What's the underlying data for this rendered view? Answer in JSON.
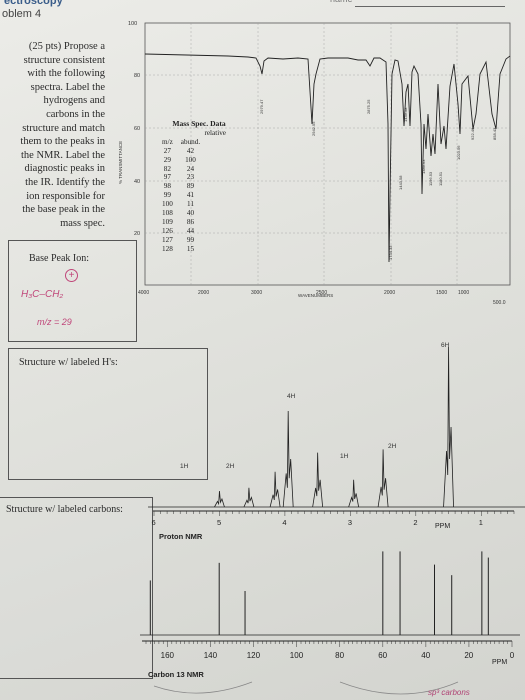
{
  "header": {
    "title_fragment": "ectroscopy",
    "problem_fragment": "oblem 4",
    "name_fragment": "name"
  },
  "problem": {
    "lines": [
      "(25 pts) Propose a",
      "structure consistent",
      "with the following",
      "spectra. Label the",
      "hydrogens and",
      "carbons in the",
      "structure and match",
      "them to the peaks in",
      "the NMR. Label the",
      "diagnostic peaks in",
      "the IR. Identify the",
      "ion responsible for",
      "the base peak in the",
      "mass spec."
    ]
  },
  "base_peak": {
    "label": "Base Peak Ion:",
    "hand_ion": "H₃C–CH₂",
    "hand_charge": "+",
    "hand_mz": "m/z = 29"
  },
  "boxes": {
    "structure_h": "Structure w/ labeled H's:",
    "structure_c": "Structure w/ labeled carbons:"
  },
  "ir": {
    "ylabel": "% TRANSMITTANCE",
    "xlabel": "WAVENUMBERS",
    "y_ticks": [
      "100",
      "80",
      "60",
      "40",
      "20"
    ],
    "x_ticks": [
      "4000",
      "3000",
      "2500",
      "2000",
      "1500",
      "1000",
      "500.0"
    ],
    "x_tick_extra": "2000",
    "peak_labels": [
      "2979.47",
      "2942.55",
      "2875.25",
      "1734.33",
      "1449.58",
      "1443.58",
      "1389.63",
      "1196.53",
      "1180.51",
      "1023.56",
      "922.46",
      "858.43"
    ]
  },
  "mass_spec": {
    "title": "Mass Spec. Data",
    "col1": "m/z",
    "col2_line1": "relative",
    "col2_line2": "abund.",
    "rows": [
      [
        "27",
        "42"
      ],
      [
        "29",
        "100"
      ],
      [
        "82",
        "24"
      ],
      [
        "97",
        "23"
      ],
      [
        "98",
        "89"
      ],
      [
        "99",
        "41"
      ],
      [
        "100",
        "11"
      ],
      [
        "108",
        "40"
      ],
      [
        "109",
        "86"
      ],
      [
        "126",
        "44"
      ],
      [
        "127",
        "99"
      ],
      [
        "128",
        "15"
      ]
    ]
  },
  "hnmr": {
    "title": "Proton NMR",
    "axis_unit": "PPM",
    "ticks": [
      "6",
      "5",
      "4",
      "3",
      "2",
      "1"
    ],
    "integrations": [
      "1H",
      "2H",
      "4H",
      "1H",
      "2H",
      "6H"
    ],
    "peaks": [
      {
        "ppm": 5.0,
        "h": 0.1
      },
      {
        "ppm": 4.55,
        "h": 0.12
      },
      {
        "ppm": 4.15,
        "h": 0.22
      },
      {
        "ppm": 3.95,
        "h": 0.6
      },
      {
        "ppm": 3.5,
        "h": 0.34
      },
      {
        "ppm": 2.95,
        "h": 0.17
      },
      {
        "ppm": 2.5,
        "h": 0.36
      },
      {
        "ppm": 1.5,
        "h": 1.0
      }
    ]
  },
  "cnmr": {
    "title": "Carbon 13 NMR",
    "axis_unit": "PPM",
    "ticks": [
      "160",
      "140",
      "120",
      "100",
      "80",
      "60",
      "40",
      "20",
      "0"
    ],
    "peaks": [
      {
        "ppm": 168,
        "h": 0.62
      },
      {
        "ppm": 136,
        "h": 0.82
      },
      {
        "ppm": 124,
        "h": 0.5
      },
      {
        "ppm": 60,
        "h": 0.95
      },
      {
        "ppm": 52,
        "h": 0.95
      },
      {
        "ppm": 36,
        "h": 0.8
      },
      {
        "ppm": 28,
        "h": 0.68
      },
      {
        "ppm": 14,
        "h": 0.95
      },
      {
        "ppm": 11,
        "h": 0.88
      }
    ]
  },
  "bottom_hand": "sp³ carbons"
}
